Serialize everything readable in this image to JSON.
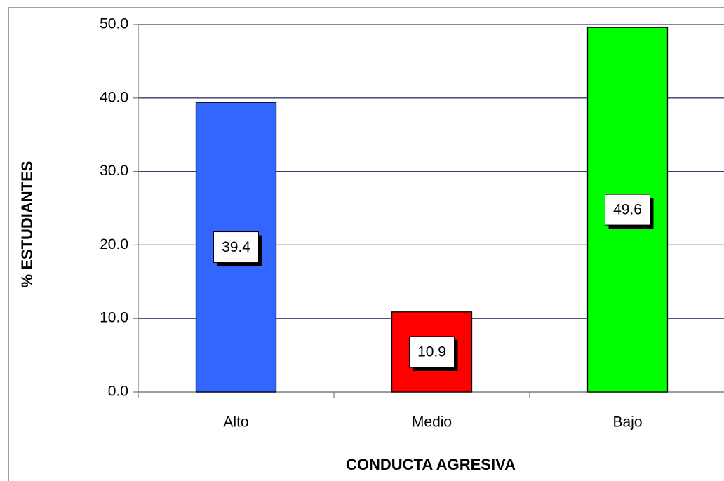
{
  "chart_data": {
    "type": "bar",
    "x_label": "CONDUCTA AGRESIVA",
    "y_label": "% ESTUDIANTES",
    "categories": [
      "Alto",
      "Medio",
      "Bajo"
    ],
    "values": [
      39.4,
      10.9,
      49.6
    ],
    "colors": [
      "#3366ff",
      "#ff0000",
      "#00ff00"
    ],
    "ylim": [
      0,
      50
    ],
    "yticks": [
      {
        "value": 0,
        "label": "0.0"
      },
      {
        "value": 10,
        "label": "10.0"
      },
      {
        "value": 20,
        "label": "20.0"
      },
      {
        "value": 30,
        "label": "30.0"
      },
      {
        "value": 40,
        "label": "40.0"
      },
      {
        "value": 50,
        "label": "50.0"
      }
    ],
    "grid": true
  }
}
